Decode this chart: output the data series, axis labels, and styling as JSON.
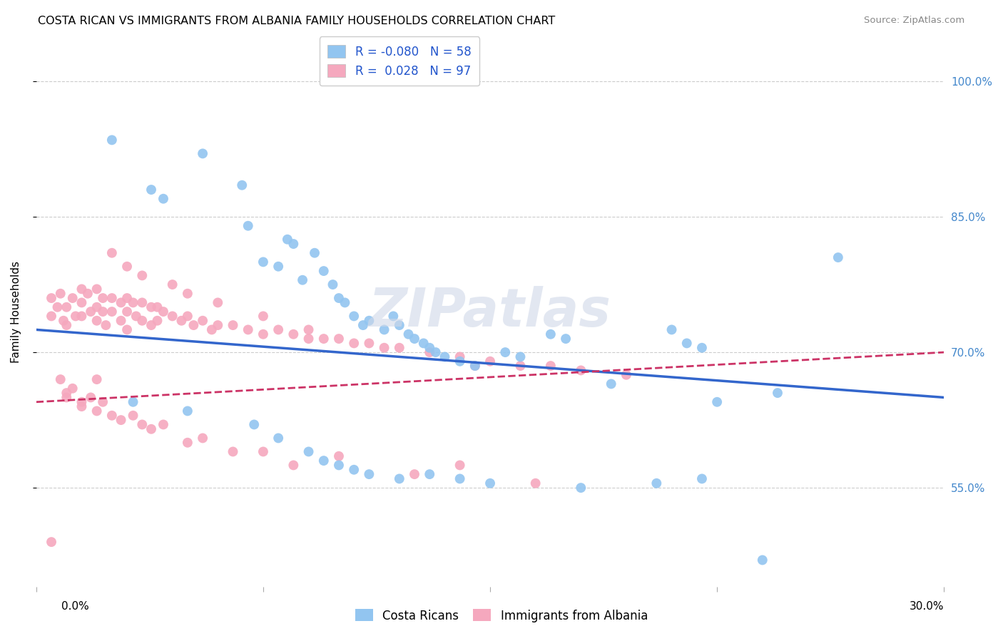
{
  "title": "COSTA RICAN VS IMMIGRANTS FROM ALBANIA FAMILY HOUSEHOLDS CORRELATION CHART",
  "source": "Source: ZipAtlas.com",
  "ylabel": "Family Households",
  "legend_blue_R": "-0.080",
  "legend_blue_N": "58",
  "legend_pink_R": "0.028",
  "legend_pink_N": "97",
  "legend_blue_label": "Costa Ricans",
  "legend_pink_label": "Immigrants from Albania",
  "background_color": "#ffffff",
  "grid_color": "#cccccc",
  "blue_color": "#92c5f0",
  "pink_color": "#f5a8be",
  "trend_blue_color": "#3366cc",
  "trend_pink_color": "#cc3366",
  "watermark": "ZIPatlas",
  "xlim": [
    0.0,
    30.0
  ],
  "ylim": [
    44.0,
    105.0
  ],
  "blue_x": [
    2.5,
    3.8,
    4.2,
    5.5,
    6.8,
    7.0,
    7.5,
    8.0,
    8.3,
    8.5,
    8.8,
    9.2,
    9.5,
    9.8,
    10.0,
    10.2,
    10.5,
    10.8,
    11.0,
    11.5,
    11.8,
    12.0,
    12.3,
    12.5,
    12.8,
    13.0,
    13.2,
    13.5,
    14.0,
    14.5,
    15.5,
    16.0,
    17.0,
    17.5,
    19.0,
    21.0,
    21.5,
    22.0,
    22.5,
    24.5,
    26.5,
    3.2,
    5.0,
    7.2,
    8.0,
    9.0,
    9.5,
    10.0,
    10.5,
    11.0,
    12.0,
    13.0,
    14.0,
    15.0,
    18.0,
    20.5,
    22.0,
    24.0
  ],
  "blue_y": [
    93.5,
    88.0,
    87.0,
    92.0,
    88.5,
    84.0,
    80.0,
    79.5,
    82.5,
    82.0,
    78.0,
    81.0,
    79.0,
    77.5,
    76.0,
    75.5,
    74.0,
    73.0,
    73.5,
    72.5,
    74.0,
    73.0,
    72.0,
    71.5,
    71.0,
    70.5,
    70.0,
    69.5,
    69.0,
    68.5,
    70.0,
    69.5,
    72.0,
    71.5,
    66.5,
    72.5,
    71.0,
    70.5,
    64.5,
    65.5,
    80.5,
    64.5,
    63.5,
    62.0,
    60.5,
    59.0,
    58.0,
    57.5,
    57.0,
    56.5,
    56.0,
    56.5,
    56.0,
    55.5,
    55.0,
    55.5,
    56.0,
    47.0
  ],
  "pink_x": [
    0.5,
    0.5,
    0.7,
    0.8,
    0.9,
    1.0,
    1.0,
    1.2,
    1.3,
    1.5,
    1.5,
    1.5,
    1.7,
    1.8,
    2.0,
    2.0,
    2.0,
    2.2,
    2.2,
    2.3,
    2.5,
    2.5,
    2.8,
    2.8,
    3.0,
    3.0,
    3.0,
    3.2,
    3.3,
    3.5,
    3.5,
    3.8,
    3.8,
    4.0,
    4.0,
    4.2,
    4.5,
    4.8,
    5.0,
    5.2,
    5.5,
    5.8,
    6.0,
    6.5,
    7.0,
    7.5,
    8.0,
    8.5,
    9.0,
    9.5,
    10.0,
    10.5,
    11.0,
    12.0,
    13.0,
    14.0,
    15.0,
    16.0,
    17.0,
    18.0,
    19.5,
    2.5,
    3.0,
    3.5,
    4.5,
    5.0,
    6.0,
    7.5,
    9.0,
    11.5,
    14.5,
    0.8,
    1.2,
    1.8,
    2.2,
    3.2,
    4.2,
    5.5,
    7.5,
    10.0,
    14.0,
    1.0,
    1.5,
    2.0,
    2.8,
    3.8,
    5.0,
    6.5,
    8.5,
    12.5,
    16.5,
    0.5,
    1.0,
    1.5,
    2.5,
    3.5,
    2.0
  ],
  "pink_y": [
    76.0,
    74.0,
    75.0,
    76.5,
    73.5,
    75.0,
    73.0,
    76.0,
    74.0,
    77.0,
    75.5,
    74.0,
    76.5,
    74.5,
    77.0,
    75.0,
    73.5,
    76.0,
    74.5,
    73.0,
    76.0,
    74.5,
    75.5,
    73.5,
    76.0,
    74.5,
    72.5,
    75.5,
    74.0,
    75.5,
    73.5,
    75.0,
    73.0,
    75.0,
    73.5,
    74.5,
    74.0,
    73.5,
    74.0,
    73.0,
    73.5,
    72.5,
    73.0,
    73.0,
    72.5,
    72.0,
    72.5,
    72.0,
    71.5,
    71.5,
    71.5,
    71.0,
    71.0,
    70.5,
    70.0,
    69.5,
    69.0,
    68.5,
    68.5,
    68.0,
    67.5,
    81.0,
    79.5,
    78.5,
    77.5,
    76.5,
    75.5,
    74.0,
    72.5,
    70.5,
    68.5,
    67.0,
    66.0,
    65.0,
    64.5,
    63.0,
    62.0,
    60.5,
    59.0,
    58.5,
    57.5,
    65.5,
    64.5,
    63.5,
    62.5,
    61.5,
    60.0,
    59.0,
    57.5,
    56.5,
    55.5,
    49.0,
    65.0,
    64.0,
    63.0,
    62.0,
    67.0
  ]
}
